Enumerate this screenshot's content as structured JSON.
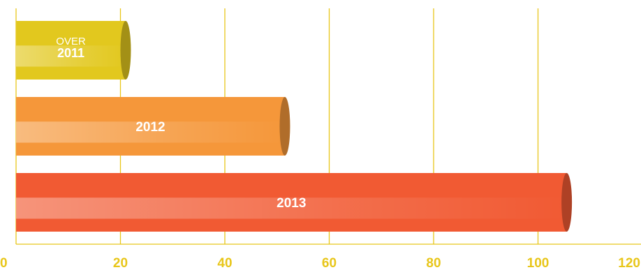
{
  "chart_data": {
    "type": "bar",
    "orientation": "horizontal",
    "categories": [
      "2011",
      "2012",
      "2013"
    ],
    "category_prefixes": [
      "OVER",
      "",
      ""
    ],
    "values": [
      21,
      51.5,
      105.5
    ],
    "colors": [
      "#E2C81E",
      "#F5973A",
      "#F15A33"
    ],
    "xlim": [
      0,
      120
    ],
    "x_ticks": [
      0,
      20,
      40,
      60,
      80,
      100,
      120
    ],
    "grid": true,
    "grid_color": "#E8C61A",
    "tick_color": "#E8C61A"
  }
}
